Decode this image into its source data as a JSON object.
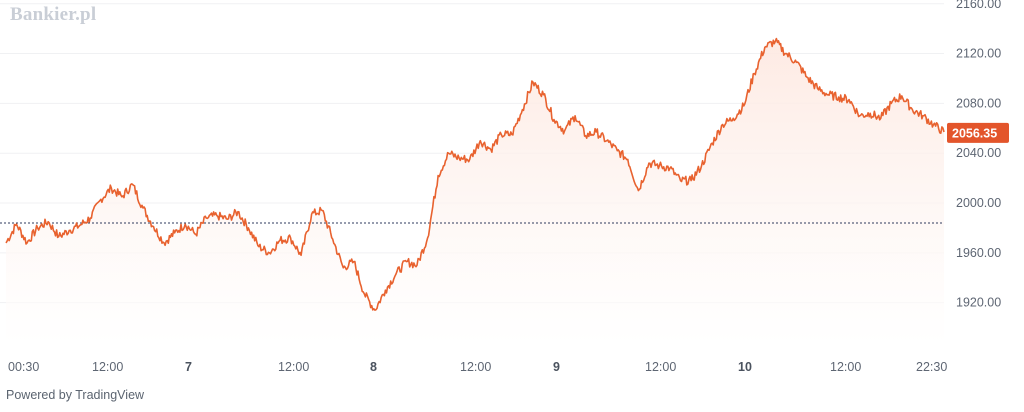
{
  "brand": {
    "logo_text": "Bankier.pl",
    "powered_text": "Powered by TradingView"
  },
  "colors": {
    "line": "#e8622f",
    "price_badge": "#e3552b",
    "area_top": "#fde8e0",
    "reference_line": "#2e3a5c",
    "grid": "#f0f1f3"
  },
  "chart_data": {
    "type": "area",
    "title": "",
    "xlabel": "",
    "ylabel": "",
    "ylim": [
      1886,
      2163
    ],
    "y_ticks": [
      1920,
      1960,
      2000,
      2040,
      2080,
      2120,
      2160
    ],
    "y_tick_labels": [
      "1920.00",
      "1960.00",
      "2000.00",
      "2040.00",
      "2080.00",
      "2120.00",
      "2160.00"
    ],
    "x_ticks": [
      {
        "label": "00:30",
        "bold": false
      },
      {
        "label": "12:00",
        "bold": false
      },
      {
        "label": "7",
        "bold": true
      },
      {
        "label": "12:00",
        "bold": false
      },
      {
        "label": "8",
        "bold": true
      },
      {
        "label": "12:00",
        "bold": false
      },
      {
        "label": "9",
        "bold": true
      },
      {
        "label": "12:00",
        "bold": false
      },
      {
        "label": "10",
        "bold": true
      },
      {
        "label": "12:00",
        "bold": false
      },
      {
        "label": "22:30",
        "bold": false
      }
    ],
    "reference_line": 1984,
    "last_price": 2056.35,
    "last_price_label": "2056.35",
    "grid": true,
    "series": [
      {
        "x": [
          0,
          0.25,
          0.5,
          0.75,
          1,
          1.25,
          1.5,
          1.75,
          2,
          2.25,
          2.5,
          2.75,
          3,
          3.25,
          3.5,
          3.75,
          4,
          4.25,
          4.5,
          4.75,
          5,
          5.25,
          5.5,
          5.75,
          6,
          6.25,
          6.5,
          6.75,
          7,
          7.25,
          7.5,
          7.75,
          8,
          8.25,
          8.5,
          8.75,
          9,
          9.25,
          9.5,
          9.75,
          10,
          10.25,
          10.5,
          10.75,
          11,
          11.25,
          11.5,
          11.75,
          12,
          12.25,
          12.5,
          12.75,
          13,
          13.25,
          13.5,
          13.75,
          14,
          14.25,
          14.5,
          14.75,
          15,
          15.25,
          15.5,
          15.75,
          16,
          16.25,
          16.5,
          16.75,
          17,
          17.25,
          17.5,
          17.75,
          18,
          18.25,
          18.5,
          18.75,
          19,
          19.25,
          19.5,
          19.75,
          20,
          20.25,
          20.5,
          20.75,
          21,
          21.25,
          21.5,
          21.75,
          22,
          22.25
        ],
        "y": [
          1968,
          1983,
          1968,
          1980,
          1985,
          1973,
          1978,
          1982,
          1988,
          2003,
          2012,
          2005,
          2015,
          1996,
          1981,
          1968,
          1976,
          1983,
          1975,
          1988,
          1990,
          1987,
          1993,
          1980,
          1965,
          1960,
          1970,
          1972,
          1958,
          1991,
          1994,
          1971,
          1948,
          1953,
          1927,
          1914,
          1930,
          1943,
          1953,
          1950,
          1972,
          2022,
          2040,
          2036,
          2035,
          2050,
          2043,
          2055,
          2055,
          2075,
          2097,
          2087,
          2067,
          2058,
          2070,
          2054,
          2057,
          2050,
          2042,
          2035,
          2010,
          2032,
          2030,
          2028,
          2018,
          2018,
          2030,
          2048,
          2063,
          2068,
          2078,
          2104,
          2125,
          2130,
          2120,
          2113,
          2101,
          2092,
          2087,
          2085,
          2083,
          2070,
          2072,
          2068,
          2080,
          2086,
          2075,
          2070,
          2063,
          2057
        ]
      }
    ]
  }
}
